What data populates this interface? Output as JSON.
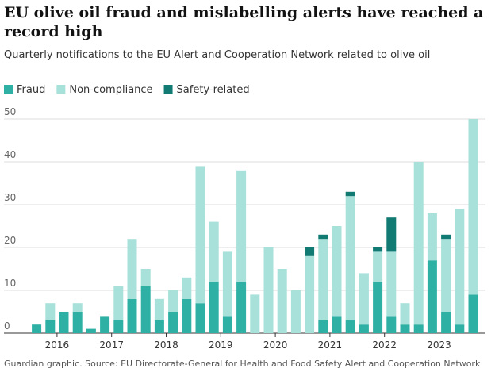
{
  "chart_data": {
    "type": "bar",
    "stacked": true,
    "title": "EU olive oil fraud and mislabelling alerts have reached a record high",
    "subtitle": "Quarterly notifications to the EU Alert and Cooperation Network related to olive oil",
    "source": "Guardian graphic. Source: EU Directorate-General for Health and Food Safety Alert and Cooperation Network",
    "categories": [
      null,
      "2016",
      null,
      null,
      null,
      "2017",
      null,
      null,
      null,
      "2018",
      null,
      null,
      null,
      "2019",
      null,
      null,
      null,
      "2020",
      null,
      null,
      null,
      "2021",
      null,
      null,
      null,
      "2022",
      null,
      null,
      null,
      "2023",
      null,
      null,
      null
    ],
    "series": [
      {
        "name": "Fraud",
        "color": "#2fb0a4",
        "values": [
          2,
          3,
          5,
          5,
          1,
          4,
          3,
          8,
          11,
          3,
          5,
          8,
          7,
          12,
          4,
          12,
          0,
          0,
          0,
          0,
          0,
          3,
          4,
          3,
          2,
          12,
          4,
          2,
          2,
          17,
          5,
          2,
          9
        ]
      },
      {
        "name": "Non-compliance",
        "color": "#a8e0da",
        "values": [
          0,
          4,
          0,
          2,
          0,
          0,
          8,
          14,
          4,
          5,
          5,
          5,
          32,
          14,
          15,
          26,
          9,
          20,
          15,
          10,
          18,
          19,
          21,
          29,
          12,
          7,
          15,
          5,
          38,
          11,
          17,
          27,
          41
        ]
      },
      {
        "name": "Safety-related",
        "color": "#117a72",
        "values": [
          0,
          0,
          0,
          0,
          0,
          0,
          0,
          0,
          0,
          0,
          0,
          0,
          0,
          0,
          0,
          0,
          0,
          0,
          0,
          0,
          2,
          1,
          0,
          1,
          0,
          1,
          8,
          0,
          0,
          0,
          1,
          0,
          0
        ]
      }
    ],
    "ylim": [
      0,
      50
    ],
    "yticks": [
      0,
      10,
      20,
      30,
      40,
      50
    ],
    "grid": true,
    "legend": "top-left"
  }
}
